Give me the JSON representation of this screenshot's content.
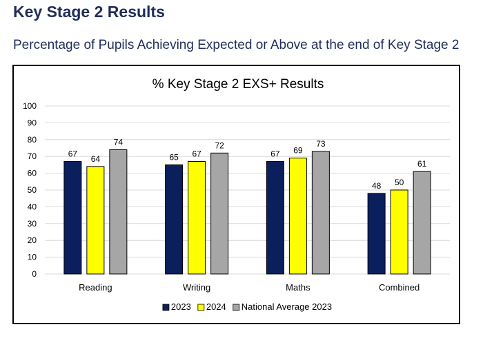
{
  "page": {
    "heading": "Key Stage 2 Results",
    "subheading": "Percentage of Pupils Achieving Expected or Above at the end of Key Stage 2"
  },
  "colors": {
    "heading": "#1f2d5a",
    "series": [
      "#0b1f5c",
      "#ffff00",
      "#a6a6a6"
    ],
    "gridline": "#d9d9d9"
  },
  "chart_data": {
    "type": "bar",
    "title": "% Key Stage 2 EXS+ Results",
    "xlabel": "",
    "ylabel": "",
    "ylim": [
      0,
      100
    ],
    "yticks": [
      0,
      10,
      20,
      30,
      40,
      50,
      60,
      70,
      80,
      90,
      100
    ],
    "grid": true,
    "legend_position": "bottom",
    "categories": [
      "Reading",
      "Writing",
      "Maths",
      "Combined"
    ],
    "series": [
      {
        "name": "2023",
        "values": [
          67,
          65,
          67,
          48
        ]
      },
      {
        "name": "2024",
        "values": [
          64,
          67,
          69,
          50
        ]
      },
      {
        "name": "National Average 2023",
        "values": [
          74,
          72,
          73,
          61
        ]
      }
    ]
  }
}
